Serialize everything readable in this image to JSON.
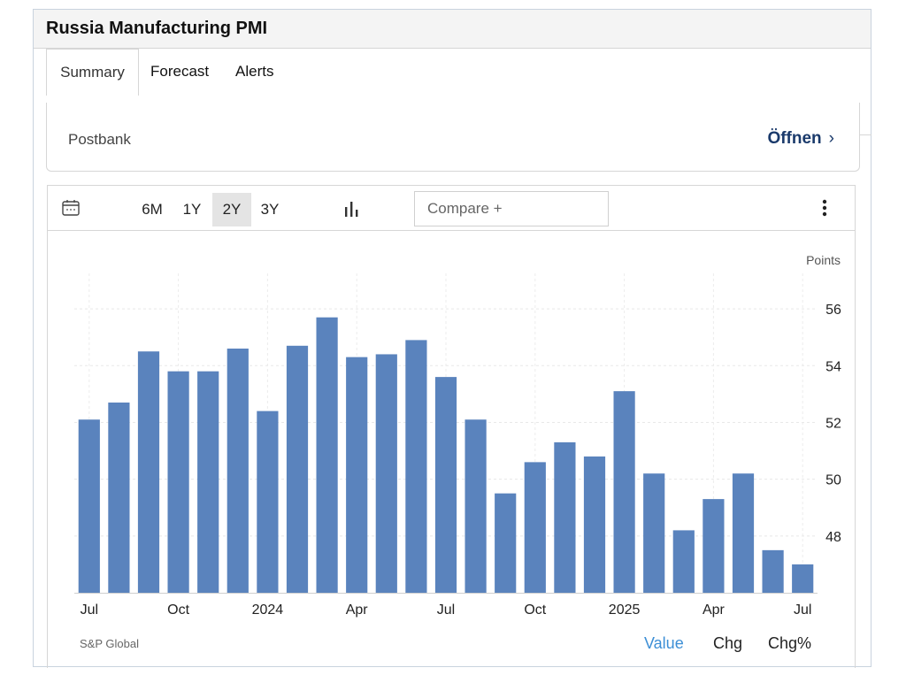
{
  "header": {
    "title": "Russia Manufacturing PMI"
  },
  "tabs": [
    {
      "label": "Summary",
      "active": true
    },
    {
      "label": "Forecast",
      "active": false
    },
    {
      "label": "Alerts",
      "active": false
    }
  ],
  "ad": {
    "label": "Postbank",
    "open_label": "Öffnen",
    "chevron": "›"
  },
  "toolbar": {
    "calendar_icon": "calendar-icon",
    "ranges": [
      {
        "label": "6M",
        "active": false
      },
      {
        "label": "1Y",
        "active": false
      },
      {
        "label": "2Y",
        "active": true
      },
      {
        "label": "3Y",
        "active": false
      }
    ],
    "chart_type_icon": "bar-chart-icon",
    "compare_label": "Compare +",
    "menu_icon": "kebab-menu-icon"
  },
  "footer": {
    "source": "S&P Global",
    "view_tabs": [
      {
        "label": "Value",
        "active": true
      },
      {
        "label": "Chg",
        "active": false
      },
      {
        "label": "Chg%",
        "active": false
      }
    ]
  },
  "colors": {
    "bar": "#5a83bd",
    "active_tab": "#3d8fd6",
    "title_bg": "#f4f4f4"
  },
  "chart_data": {
    "type": "bar",
    "unit_label": "Points",
    "x": [
      "2023-07",
      "2023-08",
      "2023-09",
      "2023-10",
      "2023-11",
      "2023-12",
      "2024-01",
      "2024-02",
      "2024-03",
      "2024-04",
      "2024-05",
      "2024-06",
      "2024-07",
      "2024-08",
      "2024-09",
      "2024-10",
      "2024-11",
      "2024-12",
      "2025-01",
      "2025-02",
      "2025-03",
      "2025-04",
      "2025-05",
      "2025-06",
      "2025-07"
    ],
    "values": [
      52.1,
      52.7,
      54.5,
      53.8,
      53.8,
      54.6,
      52.4,
      54.7,
      55.7,
      54.3,
      54.4,
      54.9,
      53.6,
      52.1,
      49.5,
      50.6,
      51.3,
      50.8,
      53.1,
      50.2,
      48.2,
      49.3,
      50.2,
      47.5,
      47.0
    ],
    "x_tick_labels": [
      {
        "index": 0,
        "label": "Jul"
      },
      {
        "index": 3,
        "label": "Oct"
      },
      {
        "index": 6,
        "label": "2024"
      },
      {
        "index": 9,
        "label": "Apr"
      },
      {
        "index": 12,
        "label": "Jul"
      },
      {
        "index": 15,
        "label": "Oct"
      },
      {
        "index": 18,
        "label": "2025"
      },
      {
        "index": 21,
        "label": "Apr"
      },
      {
        "index": 24,
        "label": "Jul"
      }
    ],
    "y_ticks": [
      48,
      50,
      52,
      54,
      56
    ],
    "ylim": [
      46,
      57
    ],
    "grid": true,
    "y_axis_position": "right"
  }
}
